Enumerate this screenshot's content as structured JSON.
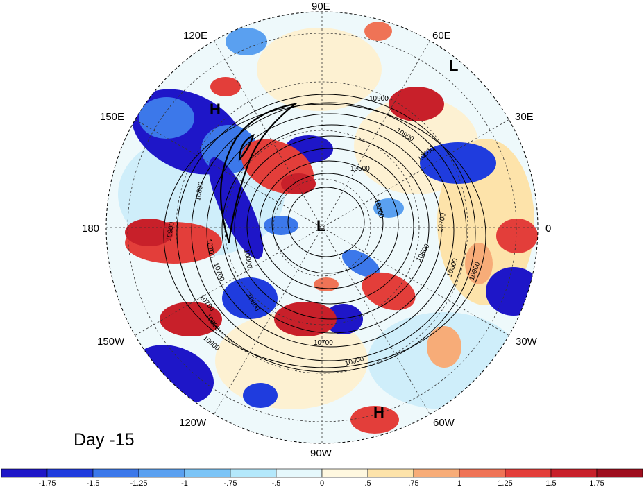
{
  "title": "",
  "panel_label": "Day -15",
  "longitude_labels": {
    "lon_90e": "90E",
    "lon_120e": "120E",
    "lon_60e": "60E",
    "lon_150e": "150E",
    "lon_30e": "30E",
    "lon_180": "180",
    "lon_0": "0",
    "lon_150w": "150W",
    "lon_30w": "30W",
    "lon_120w": "120W",
    "lon_60w": "60W",
    "lon_90w": "90W"
  },
  "pressure_centers": [
    {
      "id": "L-pole",
      "label": "L"
    },
    {
      "id": "L-europe",
      "label": "L"
    },
    {
      "id": "H-siberia",
      "label": "H"
    },
    {
      "id": "H-southamerica",
      "label": "H"
    }
  ],
  "contour_levels": [
    "10000",
    "10200",
    "10500",
    "10600",
    "10700",
    "10800",
    "10900"
  ],
  "contour_labels": [
    "10900",
    "10900",
    "10500",
    "10600",
    "10200",
    "10700",
    "10000",
    "10900",
    "10800",
    "10700",
    "10600",
    "10700",
    "10800",
    "10900",
    "10800",
    "10700",
    "10900",
    "10700",
    "10900",
    "10800"
  ],
  "colorbar": {
    "ticks": [
      "-1.75",
      "-1.5",
      "-1.25",
      "-1",
      "-.75",
      "-.5",
      "0",
      ".5",
      ".75",
      "1",
      "1.25",
      "1.5",
      "1.75"
    ],
    "colors": [
      "#1e16c8",
      "#1f3cde",
      "#3c78ea",
      "#5aa0f0",
      "#7cc4f6",
      "#b4e8fb",
      "#e6f8fc",
      "#fff8e0",
      "#fde3aa",
      "#f7ac78",
      "#ef7356",
      "#e33e3a",
      "#c8202a",
      "#9e0e1e"
    ]
  }
}
